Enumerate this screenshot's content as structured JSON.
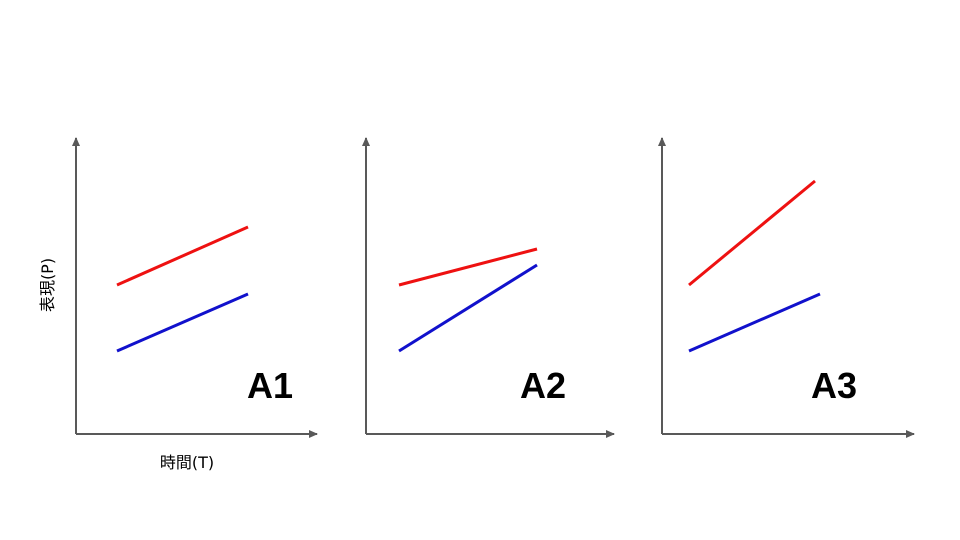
{
  "y_axis_label": "表現(P)",
  "x_axis_label": "時間(T)",
  "panels": [
    {
      "label": "A1"
    },
    {
      "label": "A2"
    },
    {
      "label": "A3"
    }
  ]
}
